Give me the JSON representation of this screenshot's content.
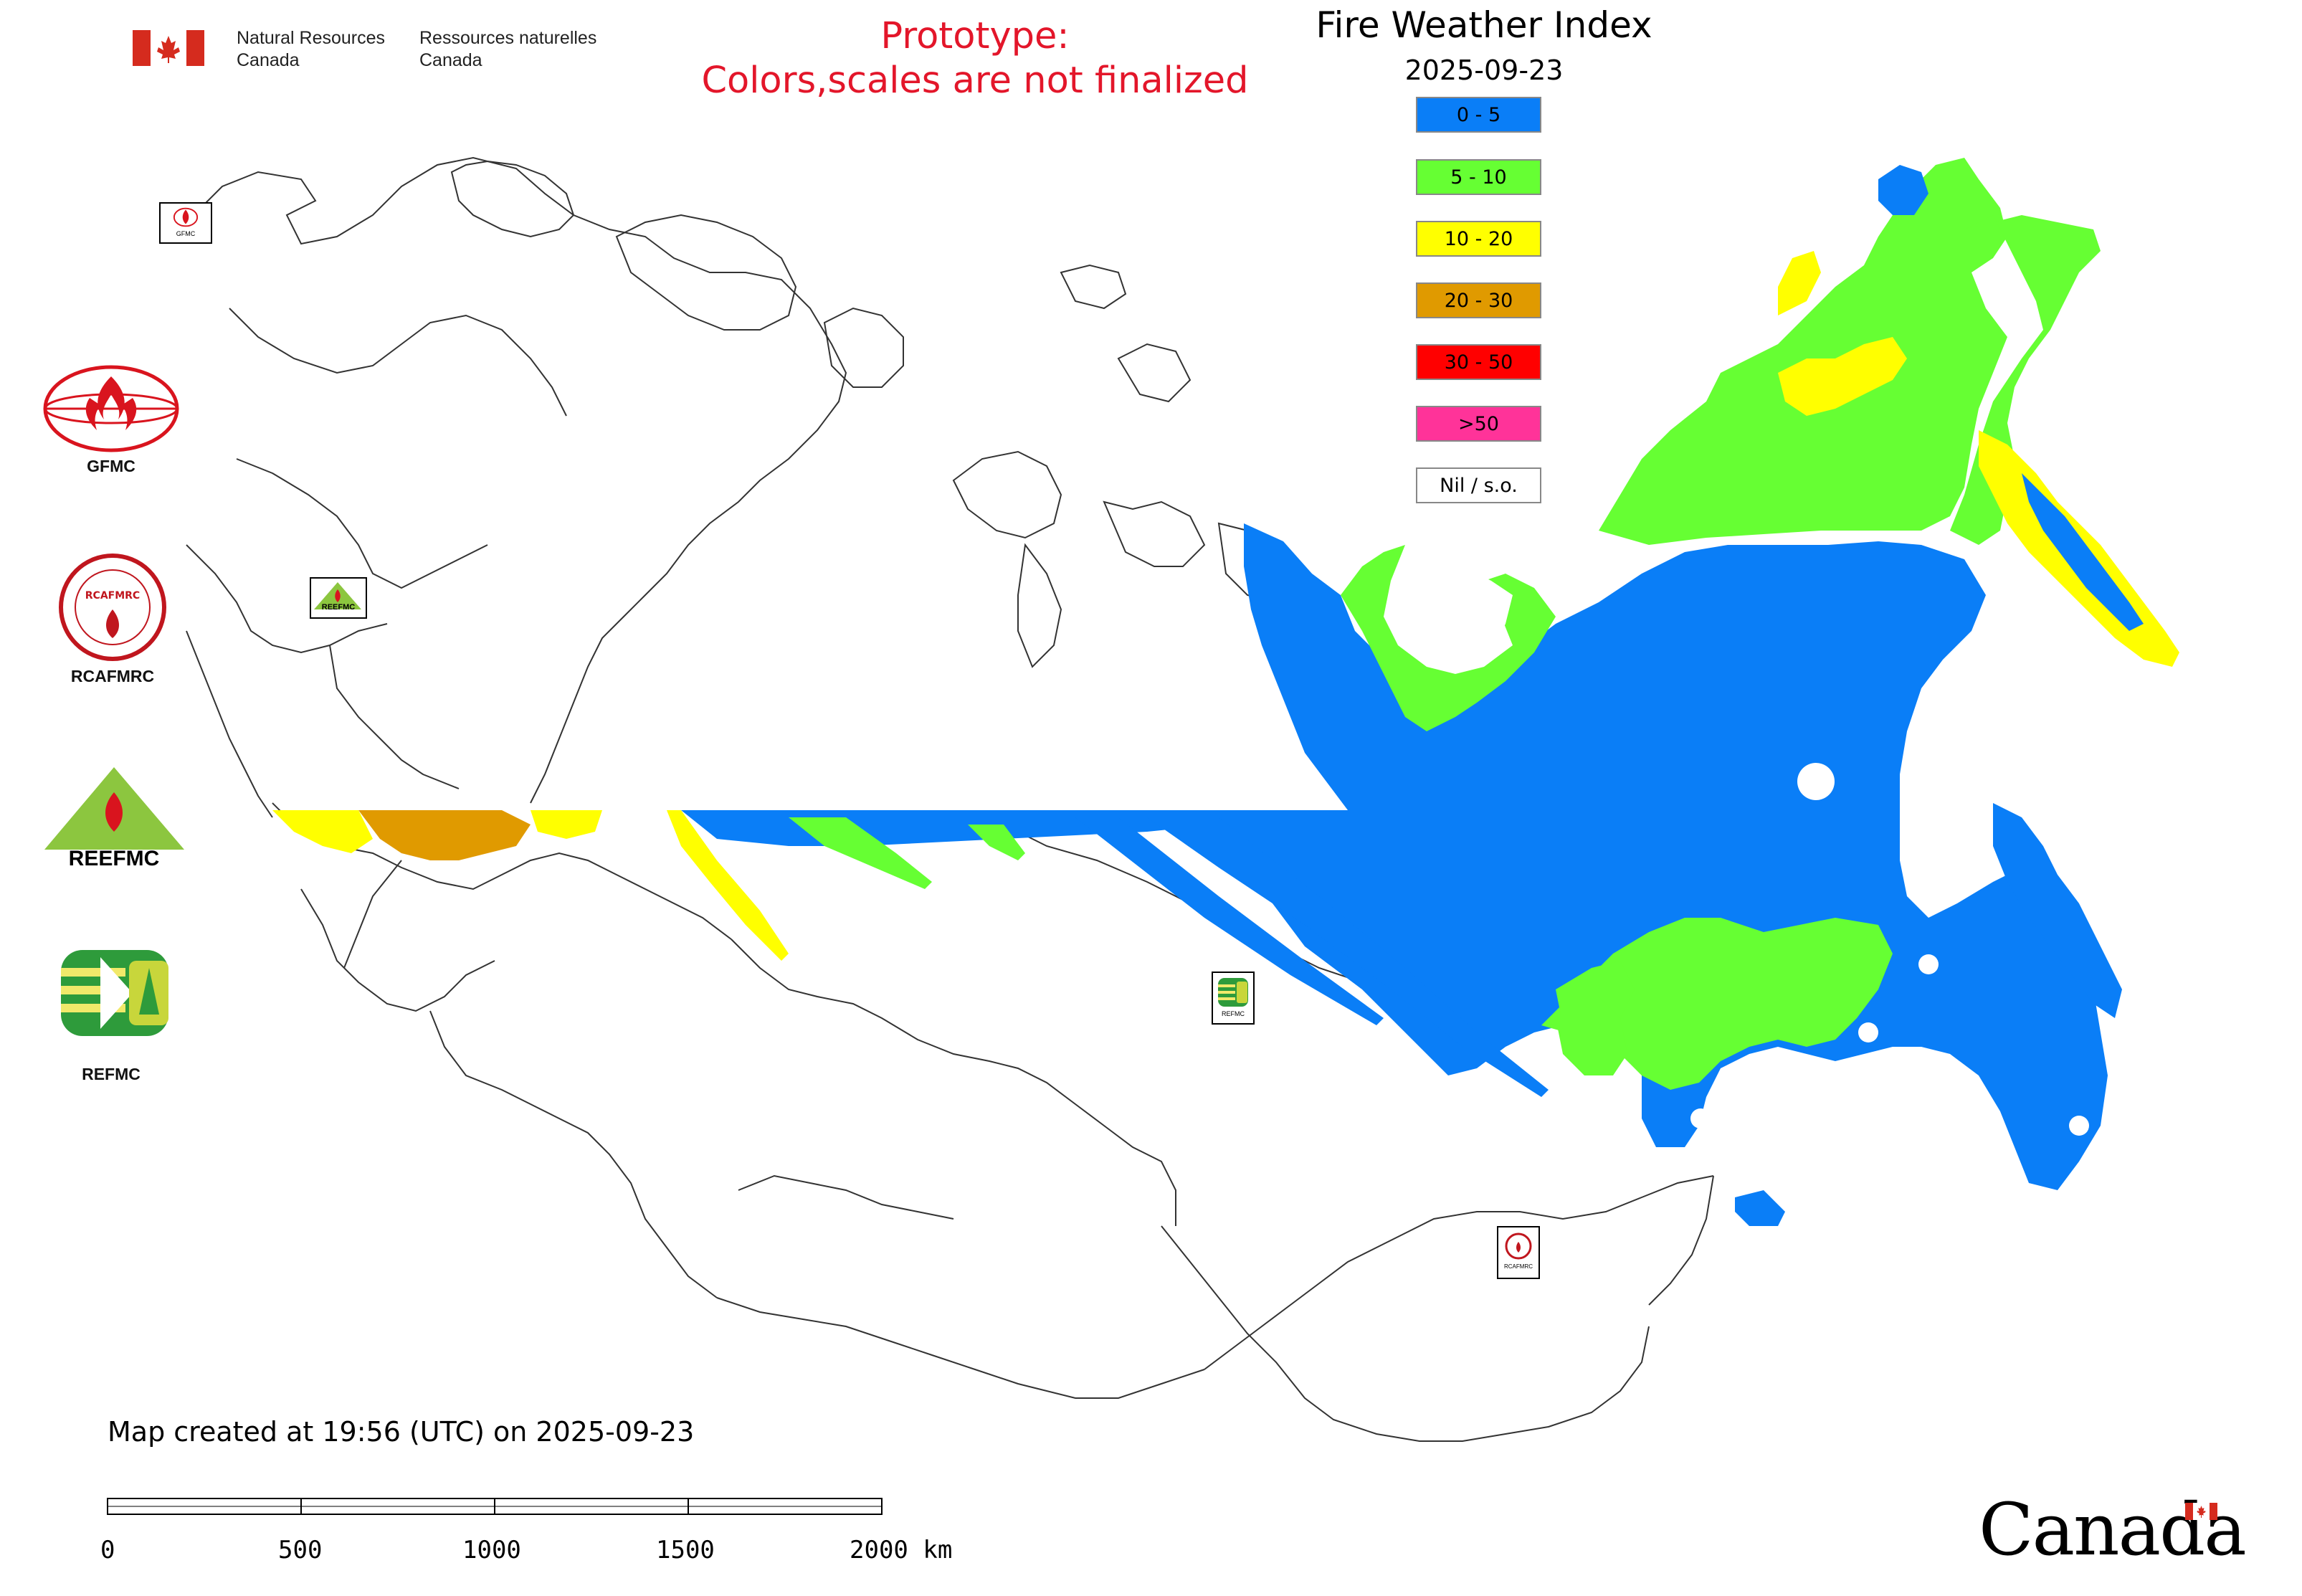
{
  "header": {
    "nrcan_en": [
      "Natural Resources",
      "Canada"
    ],
    "nrcan_fr": [
      "Ressources naturelles",
      "Canada"
    ],
    "prototype_lines": [
      "Prototype:",
      "Colors,scales are not finalized"
    ],
    "title": "Fire Weather Index",
    "date": "2025-09-23"
  },
  "legend": [
    {
      "label": "0 - 5",
      "color": "#0a7ef7"
    },
    {
      "label": "5 - 10",
      "color": "#66ff33"
    },
    {
      "label": "10 - 20",
      "color": "#ffff00"
    },
    {
      "label": "20 - 30",
      "color": "#e09a00"
    },
    {
      "label": "30 - 50",
      "color": "#ff0000"
    },
    {
      "label": ">50",
      "color": "#ff3399"
    },
    {
      "label": "Nil / s.o.",
      "color": "#ffffff"
    }
  ],
  "side_logos": [
    {
      "caption": "GFMC",
      "icon": "gfmc-logo-icon"
    },
    {
      "caption": "RCAFMRC",
      "icon": "rcafmrc-logo-icon"
    },
    {
      "caption": "",
      "icon": "reefmc-logo-icon",
      "logo_text": "REEFMC"
    },
    {
      "caption": "REFMC",
      "icon": "refmc-logo-icon"
    }
  ],
  "map_markers": [
    {
      "label": "GFMC",
      "icon": "gfmc-marker-icon"
    },
    {
      "label": "REEFMC",
      "icon": "reefmc-marker-icon"
    },
    {
      "label": "REFMC",
      "icon": "refmc-marker-icon"
    },
    {
      "label": "RCAFMRC",
      "icon": "rcafmrc-marker-icon"
    }
  ],
  "footer": {
    "created": "Map created at 19:56 (UTC) on 2025-09-23",
    "scale_ticks": [
      "0",
      "500",
      "1000",
      "1500",
      "2000 km"
    ],
    "wordmark": "Canada"
  }
}
